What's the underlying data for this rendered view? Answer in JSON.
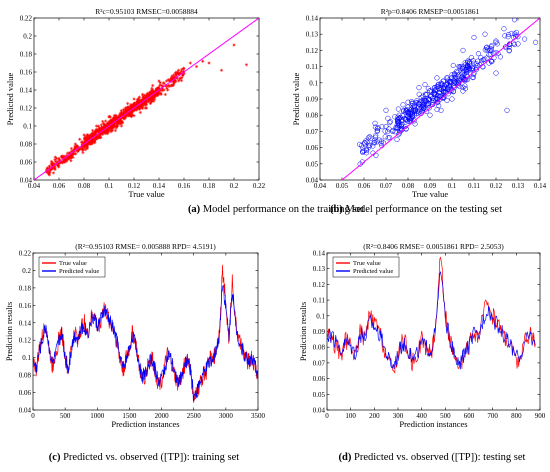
{
  "chart_data": [
    {
      "type": "scatter",
      "title": "R²c=0.95103   RMSEC=0.0058884",
      "xlabel": "True value",
      "ylabel": "Predicted value",
      "xlim": [
        0.04,
        0.22
      ],
      "ylim": [
        0.04,
        0.22
      ],
      "xticks": [
        "0.04",
        "0.06",
        "0.08",
        "0.1",
        "0.12",
        "0.14",
        "0.16",
        "0.18",
        "0.2",
        "0.22"
      ],
      "yticks": [
        "0.04",
        "0.06",
        "0.08",
        "0.1",
        "0.12",
        "0.14",
        "0.16",
        "0.18",
        "0.2",
        "0.22"
      ],
      "marker": "asterisk",
      "marker_color": "#ff0000",
      "fit_line_color": "#ff00ff",
      "fit_line": [
        [
          0.04,
          0.04
        ],
        [
          0.22,
          0.22
        ]
      ],
      "caption_label": "(a)",
      "caption_text": " Model performance on the training set",
      "points": [
        [
          0.05,
          0.051
        ],
        [
          0.055,
          0.058
        ],
        [
          0.06,
          0.059
        ],
        [
          0.062,
          0.066
        ],
        [
          0.065,
          0.063
        ],
        [
          0.068,
          0.07
        ],
        [
          0.07,
          0.072
        ],
        [
          0.072,
          0.069
        ],
        [
          0.074,
          0.078
        ],
        [
          0.076,
          0.074
        ],
        [
          0.078,
          0.082
        ],
        [
          0.08,
          0.079
        ],
        [
          0.082,
          0.086
        ],
        [
          0.084,
          0.081
        ],
        [
          0.086,
          0.089
        ],
        [
          0.088,
          0.085
        ],
        [
          0.09,
          0.094
        ],
        [
          0.092,
          0.088
        ],
        [
          0.094,
          0.097
        ],
        [
          0.096,
          0.093
        ],
        [
          0.098,
          0.101
        ],
        [
          0.1,
          0.097
        ],
        [
          0.102,
          0.106
        ],
        [
          0.104,
          0.1
        ],
        [
          0.106,
          0.109
        ],
        [
          0.108,
          0.105
        ],
        [
          0.11,
          0.113
        ],
        [
          0.112,
          0.108
        ],
        [
          0.114,
          0.118
        ],
        [
          0.116,
          0.112
        ],
        [
          0.118,
          0.121
        ],
        [
          0.12,
          0.117
        ],
        [
          0.122,
          0.126
        ],
        [
          0.124,
          0.12
        ],
        [
          0.126,
          0.129
        ],
        [
          0.128,
          0.125
        ],
        [
          0.13,
          0.134
        ],
        [
          0.132,
          0.128
        ],
        [
          0.134,
          0.137
        ],
        [
          0.136,
          0.132
        ],
        [
          0.138,
          0.141
        ],
        [
          0.14,
          0.137
        ],
        [
          0.142,
          0.145
        ],
        [
          0.144,
          0.14
        ],
        [
          0.146,
          0.15
        ],
        [
          0.148,
          0.144
        ],
        [
          0.15,
          0.153
        ],
        [
          0.152,
          0.147
        ],
        [
          0.155,
          0.16
        ],
        [
          0.16,
          0.158
        ],
        [
          0.165,
          0.17
        ],
        [
          0.17,
          0.166
        ],
        [
          0.175,
          0.172
        ],
        [
          0.18,
          0.17
        ],
        [
          0.19,
          0.162
        ],
        [
          0.2,
          0.19
        ],
        [
          0.21,
          0.168
        ],
        [
          0.08,
          0.09
        ],
        [
          0.09,
          0.1
        ],
        [
          0.1,
          0.11
        ],
        [
          0.11,
          0.1
        ],
        [
          0.12,
          0.13
        ],
        [
          0.13,
          0.12
        ],
        [
          0.14,
          0.15
        ],
        [
          0.07,
          0.075
        ],
        [
          0.085,
          0.08
        ],
        [
          0.095,
          0.105
        ],
        [
          0.105,
          0.095
        ],
        [
          0.115,
          0.125
        ],
        [
          0.125,
          0.115
        ],
        [
          0.135,
          0.145
        ],
        [
          0.145,
          0.135
        ],
        [
          0.06,
          0.064
        ],
        [
          0.066,
          0.061
        ],
        [
          0.073,
          0.08
        ],
        [
          0.079,
          0.073
        ],
        [
          0.087,
          0.095
        ],
        [
          0.093,
          0.087
        ],
        [
          0.101,
          0.11
        ],
        [
          0.107,
          0.1
        ],
        [
          0.113,
          0.12
        ],
        [
          0.119,
          0.112
        ],
        [
          0.127,
          0.135
        ],
        [
          0.133,
          0.125
        ],
        [
          0.141,
          0.148
        ],
        [
          0.147,
          0.14
        ]
      ]
    },
    {
      "type": "scatter",
      "title": "R²p=0.8406   RMSEP=0.0051861",
      "xlabel": "True value",
      "ylabel": "Predicted value",
      "xlim": [
        0.04,
        0.14
      ],
      "ylim": [
        0.04,
        0.14
      ],
      "xticks": [
        "0.04",
        "0.05",
        "0.06",
        "0.07",
        "0.08",
        "0.09",
        "0.1",
        "0.11",
        "0.12",
        "0.13",
        "0.14"
      ],
      "yticks": [
        "0.04",
        "0.05",
        "0.06",
        "0.07",
        "0.08",
        "0.09",
        "0.1",
        "0.11",
        "0.12",
        "0.13",
        "0.14"
      ],
      "marker": "circle",
      "marker_color": "#0000ff",
      "fit_line_color": "#ff00ff",
      "fit_line": [
        [
          0.05,
          0.04
        ],
        [
          0.14,
          0.14
        ]
      ],
      "caption_label": "(b)",
      "caption_text": " Model performance on the testing set",
      "points": [
        [
          0.058,
          0.062
        ],
        [
          0.06,
          0.058
        ],
        [
          0.062,
          0.066
        ],
        [
          0.064,
          0.061
        ],
        [
          0.066,
          0.07
        ],
        [
          0.068,
          0.064
        ],
        [
          0.07,
          0.073
        ],
        [
          0.071,
          0.066
        ],
        [
          0.072,
          0.076
        ],
        [
          0.073,
          0.07
        ],
        [
          0.074,
          0.079
        ],
        [
          0.075,
          0.072
        ],
        [
          0.076,
          0.08
        ],
        [
          0.077,
          0.074
        ],
        [
          0.078,
          0.083
        ],
        [
          0.079,
          0.077
        ],
        [
          0.08,
          0.085
        ],
        [
          0.081,
          0.078
        ],
        [
          0.082,
          0.087
        ],
        [
          0.083,
          0.08
        ],
        [
          0.084,
          0.089
        ],
        [
          0.085,
          0.082
        ],
        [
          0.086,
          0.091
        ],
        [
          0.087,
          0.084
        ],
        [
          0.088,
          0.093
        ],
        [
          0.089,
          0.086
        ],
        [
          0.09,
          0.095
        ],
        [
          0.091,
          0.088
        ],
        [
          0.092,
          0.097
        ],
        [
          0.093,
          0.09
        ],
        [
          0.094,
          0.099
        ],
        [
          0.095,
          0.092
        ],
        [
          0.096,
          0.101
        ],
        [
          0.097,
          0.094
        ],
        [
          0.098,
          0.103
        ],
        [
          0.099,
          0.096
        ],
        [
          0.1,
          0.105
        ],
        [
          0.101,
          0.098
        ],
        [
          0.102,
          0.107
        ],
        [
          0.103,
          0.1
        ],
        [
          0.104,
          0.109
        ],
        [
          0.105,
          0.102
        ],
        [
          0.106,
          0.111
        ],
        [
          0.107,
          0.104
        ],
        [
          0.108,
          0.113
        ],
        [
          0.11,
          0.106
        ],
        [
          0.112,
          0.118
        ],
        [
          0.114,
          0.11
        ],
        [
          0.116,
          0.12
        ],
        [
          0.118,
          0.113
        ],
        [
          0.12,
          0.125
        ],
        [
          0.122,
          0.116
        ],
        [
          0.124,
          0.129
        ],
        [
          0.126,
          0.12
        ],
        [
          0.128,
          0.128
        ],
        [
          0.13,
          0.124
        ],
        [
          0.133,
          0.127
        ],
        [
          0.138,
          0.125
        ],
        [
          0.115,
          0.13
        ],
        [
          0.11,
          0.128
        ],
        [
          0.105,
          0.12
        ],
        [
          0.12,
          0.106
        ],
        [
          0.125,
          0.083
        ],
        [
          0.07,
          0.083
        ],
        [
          0.065,
          0.075
        ],
        [
          0.075,
          0.065
        ],
        [
          0.085,
          0.097
        ],
        [
          0.095,
          0.083
        ],
        [
          0.09,
          0.08
        ],
        [
          0.1,
          0.09
        ]
      ]
    },
    {
      "type": "line",
      "title": "(R²=0.95103  RMSE= 0.005888  RPD= 4.5191)",
      "xlabel": "Prediction instances",
      "ylabel": "Prediction results",
      "xlim": [
        0,
        3500
      ],
      "ylim": [
        0.04,
        0.22
      ],
      "xticks": [
        "0",
        "500",
        "1000",
        "1500",
        "2000",
        "2500",
        "3000",
        "3500"
      ],
      "yticks": [
        "0.04",
        "0.06",
        "0.08",
        "0.1",
        "0.12",
        "0.14",
        "0.16",
        "0.18",
        "0.2",
        "0.22"
      ],
      "legend_position": "top-left",
      "series": [
        {
          "name": "True value",
          "color": "#ff0000"
        },
        {
          "name": "Predicted value",
          "color": "#0000ff"
        }
      ],
      "x": [
        0,
        50,
        100,
        150,
        200,
        250,
        300,
        350,
        400,
        450,
        500,
        550,
        600,
        650,
        700,
        750,
        800,
        850,
        900,
        950,
        1000,
        1050,
        1100,
        1150,
        1200,
        1250,
        1300,
        1350,
        1400,
        1450,
        1500,
        1550,
        1600,
        1650,
        1700,
        1750,
        1800,
        1850,
        1900,
        1950,
        2000,
        2050,
        2100,
        2150,
        2200,
        2250,
        2300,
        2350,
        2400,
        2450,
        2500,
        2550,
        2600,
        2650,
        2700,
        2750,
        2800,
        2850,
        2900,
        2950,
        3000,
        3050,
        3100,
        3150,
        3200,
        3250,
        3300,
        3350,
        3400,
        3450,
        3500
      ],
      "values_true": [
        0.1,
        0.085,
        0.11,
        0.125,
        0.14,
        0.11,
        0.09,
        0.105,
        0.12,
        0.13,
        0.1,
        0.085,
        0.115,
        0.13,
        0.12,
        0.135,
        0.14,
        0.125,
        0.145,
        0.15,
        0.135,
        0.14,
        0.16,
        0.15,
        0.14,
        0.135,
        0.12,
        0.1,
        0.085,
        0.1,
        0.11,
        0.13,
        0.115,
        0.09,
        0.075,
        0.08,
        0.095,
        0.1,
        0.085,
        0.07,
        0.075,
        0.09,
        0.105,
        0.095,
        0.08,
        0.07,
        0.075,
        0.09,
        0.1,
        0.085,
        0.05,
        0.06,
        0.07,
        0.08,
        0.085,
        0.1,
        0.095,
        0.11,
        0.13,
        0.2,
        0.16,
        0.12,
        0.19,
        0.14,
        0.12,
        0.11,
        0.1,
        0.095,
        0.1,
        0.09,
        0.08
      ],
      "values_pred": [
        0.098,
        0.088,
        0.108,
        0.122,
        0.137,
        0.112,
        0.093,
        0.103,
        0.118,
        0.127,
        0.102,
        0.088,
        0.112,
        0.127,
        0.122,
        0.132,
        0.137,
        0.127,
        0.142,
        0.147,
        0.137,
        0.142,
        0.155,
        0.148,
        0.142,
        0.133,
        0.122,
        0.102,
        0.088,
        0.098,
        0.112,
        0.127,
        0.113,
        0.093,
        0.078,
        0.083,
        0.093,
        0.098,
        0.087,
        0.073,
        0.077,
        0.088,
        0.102,
        0.097,
        0.082,
        0.073,
        0.077,
        0.088,
        0.098,
        0.087,
        0.055,
        0.062,
        0.072,
        0.082,
        0.087,
        0.098,
        0.097,
        0.108,
        0.127,
        0.19,
        0.155,
        0.125,
        0.18,
        0.138,
        0.122,
        0.112,
        0.102,
        0.097,
        0.098,
        0.092,
        0.083
      ],
      "caption_label": "(c)",
      "caption_text": " Predicted vs. observed ([TP]): training set"
    },
    {
      "type": "line",
      "title": "(R²=0.8406  RMSE= 0.0051861 RPD= 2.5053)",
      "xlabel": "Prediction instances",
      "ylabel": "Prediction results",
      "xlim": [
        0,
        900
      ],
      "ylim": [
        0.04,
        0.14
      ],
      "xticks": [
        "0",
        "100",
        "200",
        "300",
        "400",
        "500",
        "600",
        "700",
        "800",
        "900"
      ],
      "yticks": [
        "0.04",
        "0.05",
        "0.06",
        "0.07",
        "0.08",
        "0.09",
        "0.1",
        "0.11",
        "0.12",
        "0.13",
        "0.14"
      ],
      "legend_position": "top-left",
      "series": [
        {
          "name": "True value",
          "color": "#ff0000"
        },
        {
          "name": "Predicted value",
          "color": "#0000ff"
        }
      ],
      "x": [
        0,
        20,
        40,
        60,
        80,
        100,
        120,
        140,
        160,
        180,
        200,
        220,
        240,
        260,
        280,
        300,
        320,
        340,
        360,
        380,
        400,
        420,
        440,
        460,
        480,
        500,
        520,
        540,
        560,
        580,
        600,
        620,
        640,
        660,
        680,
        700,
        720,
        740,
        760,
        780,
        800,
        820,
        840,
        860,
        880
      ],
      "values_true": [
        0.09,
        0.085,
        0.08,
        0.075,
        0.085,
        0.08,
        0.075,
        0.09,
        0.085,
        0.1,
        0.095,
        0.09,
        0.08,
        0.07,
        0.065,
        0.075,
        0.085,
        0.08,
        0.07,
        0.075,
        0.085,
        0.08,
        0.075,
        0.095,
        0.14,
        0.1,
        0.085,
        0.07,
        0.065,
        0.075,
        0.08,
        0.09,
        0.085,
        0.1,
        0.11,
        0.1,
        0.095,
        0.09,
        0.085,
        0.08,
        0.07,
        0.075,
        0.085,
        0.09,
        0.08
      ],
      "values_pred": [
        0.088,
        0.086,
        0.082,
        0.078,
        0.084,
        0.081,
        0.077,
        0.088,
        0.086,
        0.097,
        0.094,
        0.089,
        0.081,
        0.073,
        0.068,
        0.076,
        0.083,
        0.08,
        0.072,
        0.076,
        0.083,
        0.08,
        0.077,
        0.093,
        0.13,
        0.098,
        0.085,
        0.073,
        0.068,
        0.076,
        0.081,
        0.088,
        0.086,
        0.098,
        0.105,
        0.098,
        0.094,
        0.089,
        0.085,
        0.081,
        0.073,
        0.076,
        0.084,
        0.088,
        0.081
      ],
      "caption_label": "(d)",
      "caption_text": " Predicted vs. observed ([TP]): testing set"
    }
  ]
}
